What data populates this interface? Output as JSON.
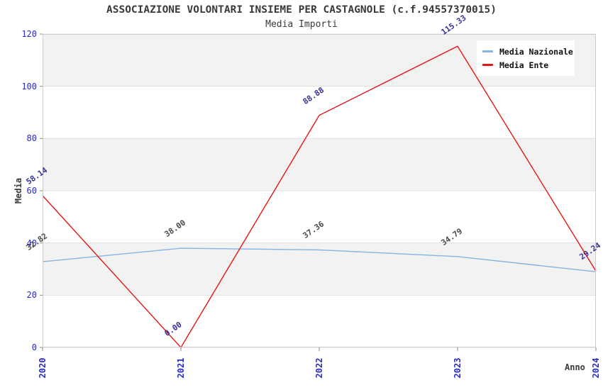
{
  "title": "ASSOCIAZIONE VOLONTARI INSIEME PER CASTAGNOLE (c.f.94557370015)",
  "subtitle": "Media Importi",
  "colors": {
    "tick_text": "#2a2ac8",
    "axis_title_text": "#3a3a3a",
    "stripe_gray": "#f2f2f2",
    "gridline": "#e0e0e0",
    "plot_border": "#cccccc",
    "legend_background": "#ffffff",
    "nazionale_line": "#85b4e0",
    "ente_line": "#e41717",
    "nazionale_label_text": "#4a4a4a",
    "ente_label_text": "#333399"
  },
  "chart_data": {
    "type": "line",
    "x": [
      "2020",
      "2021",
      "2022",
      "2023",
      "2024"
    ],
    "xlabel": "Anno",
    "ylabel": "Media",
    "ylim": [
      0,
      120
    ],
    "ytick_step": 20,
    "yticks": [
      "0",
      "20",
      "40",
      "60",
      "80",
      "100",
      "120"
    ],
    "grid": "horizontal-stripes",
    "legend_position": "top-right-inside",
    "series": [
      {
        "name": "Media Nazionale",
        "color": "#85b4e0",
        "label_color": "#4a4a4a",
        "values": [
          32.82,
          38.0,
          37.36,
          34.79,
          29.0
        ],
        "labels": [
          "32.82",
          "38.00",
          "37.36",
          "34.79",
          ""
        ]
      },
      {
        "name": "Media Ente",
        "color": "#e41717",
        "label_color": "#333399",
        "values": [
          58.14,
          0.0,
          88.88,
          115.33,
          29.24
        ],
        "labels": [
          "58.14",
          "0.00",
          "88.88",
          "115.33",
          "29.24"
        ]
      }
    ]
  }
}
